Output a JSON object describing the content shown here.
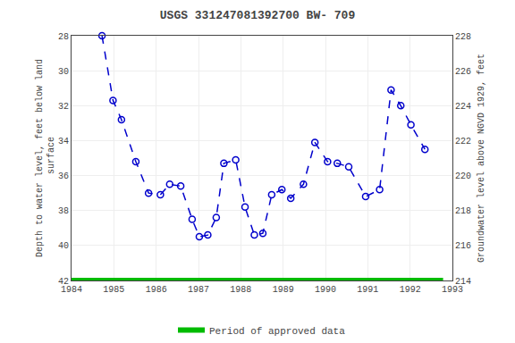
{
  "chart_data": {
    "type": "line",
    "title": "USGS 331247081392700 BW- 709",
    "ylabel": "Depth to water level, feet below land\n surface",
    "y2label": "Groundwater level above NGVD 1929, feet",
    "x": [
      1984.72,
      1984.98,
      1985.18,
      1985.52,
      1985.82,
      1986.1,
      1986.32,
      1986.58,
      1986.85,
      1987.02,
      1987.22,
      1987.42,
      1987.6,
      1987.88,
      1988.1,
      1988.32,
      1988.52,
      1988.73,
      1988.97,
      1989.18,
      1989.48,
      1989.75,
      1990.05,
      1990.28,
      1990.55,
      1990.95,
      1991.28,
      1991.55,
      1991.78,
      1992.02,
      1992.35
    ],
    "series": [
      {
        "values": [
          28.0,
          31.7,
          32.8,
          35.2,
          37.0,
          37.1,
          36.5,
          36.6,
          38.5,
          39.5,
          39.4,
          38.4,
          35.3,
          35.1,
          37.8,
          39.4,
          39.3,
          37.1,
          36.8,
          37.3,
          36.5,
          34.1,
          35.2,
          35.3,
          35.5,
          37.2,
          36.8,
          31.1,
          32.0,
          33.1,
          34.5
        ],
        "color": "#0000cc",
        "line_style": "dashed",
        "marker": "open circle"
      },
      {
        "name": "Period of approved data",
        "x": [
          1984.0,
          1992.78
        ],
        "values": [
          42,
          42
        ],
        "color": "#00bb00",
        "line_style": "solid"
      }
    ],
    "xlim": [
      1984,
      1993
    ],
    "xticks": [
      1984,
      1985,
      1986,
      1987,
      1988,
      1989,
      1990,
      1991,
      1992,
      1993
    ],
    "ylim": [
      42,
      28
    ],
    "yticks": [
      28,
      30,
      32,
      34,
      36,
      38,
      40,
      42
    ],
    "y2lim": [
      214,
      228
    ],
    "y2ticks": [
      228,
      226,
      224,
      222,
      220,
      218,
      216,
      214
    ],
    "grid": true,
    "legend": "bottom"
  }
}
